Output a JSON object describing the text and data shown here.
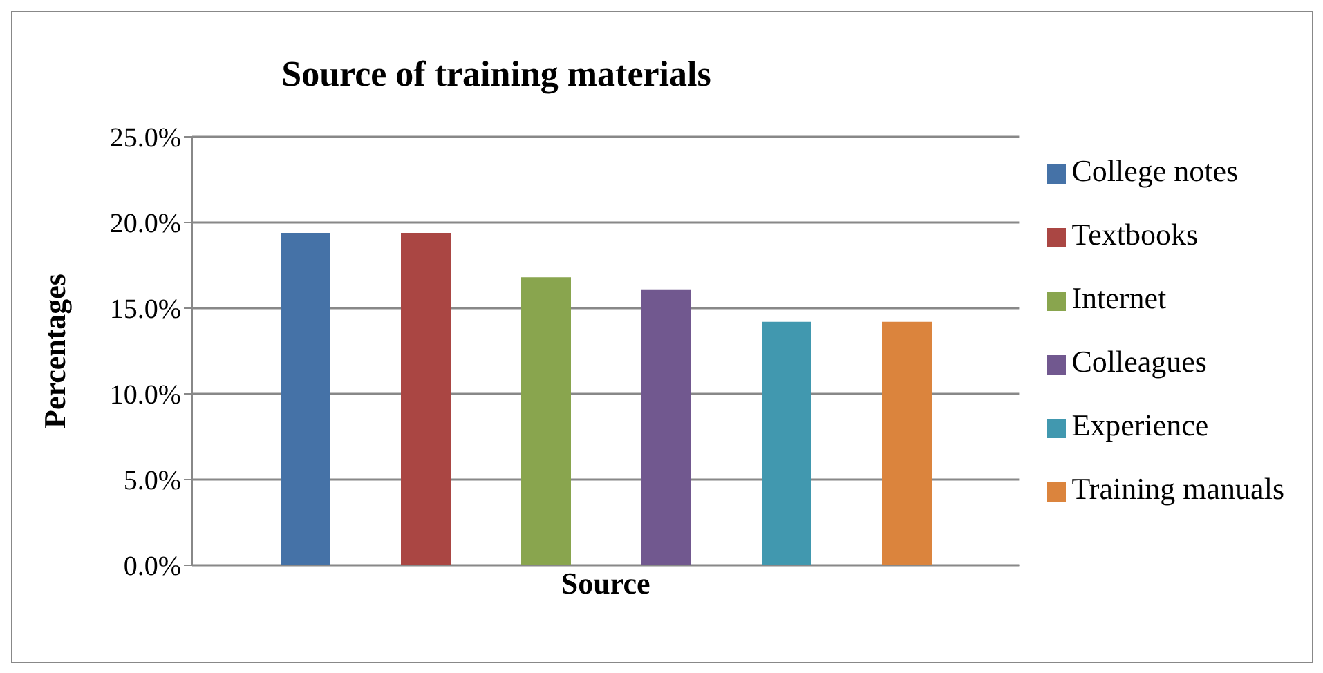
{
  "chart_data": {
    "type": "bar",
    "title": "Source of training materials",
    "xlabel": "Source",
    "ylabel": "Percentages",
    "categories": [
      null
    ],
    "series": [
      {
        "name": "College notes",
        "color": "#4572a7",
        "values": [
          19.4
        ]
      },
      {
        "name": "Textbooks",
        "color": "#aa4643",
        "values": [
          19.4
        ]
      },
      {
        "name": "Internet",
        "color": "#89a54e",
        "values": [
          16.8
        ]
      },
      {
        "name": "Colleagues",
        "color": "#71588f",
        "values": [
          16.1
        ]
      },
      {
        "name": "Experience",
        "color": "#4198af",
        "values": [
          14.2
        ]
      },
      {
        "name": "Training manuals",
        "color": "#db843d",
        "values": [
          14.2
        ]
      }
    ],
    "ylim": [
      0,
      25
    ],
    "yticks": [
      {
        "value": 0,
        "label": "0.0%"
      },
      {
        "value": 5,
        "label": "5.0%"
      },
      {
        "value": 10,
        "label": "10.0%"
      },
      {
        "value": 15,
        "label": "15.0%"
      },
      {
        "value": 20,
        "label": "20.0%"
      },
      {
        "value": 25,
        "label": "25.0%"
      }
    ],
    "grid": "y",
    "legend": "right"
  }
}
